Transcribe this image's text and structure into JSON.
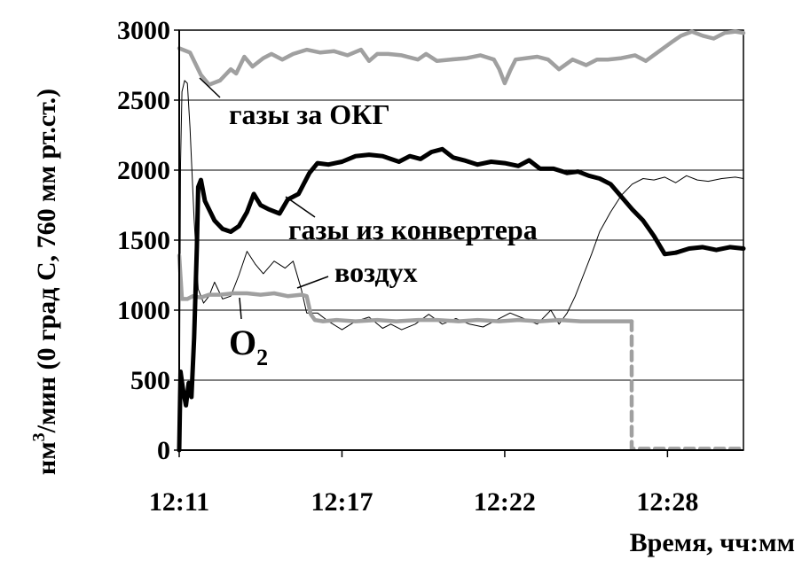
{
  "chart_data": {
    "type": "line",
    "title": "",
    "xlabel": "Время, чч:мм",
    "ylabel": "нм³/мин (0 град С, 760 мм рт.ст.)",
    "ylabel_parts": {
      "a": "нм",
      "sup": "3",
      "b": "/мин (0 град С, 760 мм рт.ст.)"
    },
    "ylim": [
      0,
      3000
    ],
    "xlim_minutes": [
      12.5,
      33.3
    ],
    "y_ticks": [
      "0",
      "500",
      "1000",
      "1500",
      "2000",
      "2500",
      "3000"
    ],
    "x_ticks": [
      {
        "label": "12:11",
        "t": 12.5
      },
      {
        "label": "12:17",
        "t": 18.5
      },
      {
        "label": "12:22",
        "t": 24.5
      },
      {
        "label": "12:28",
        "t": 30.5
      }
    ],
    "grid": "horizontal",
    "legend": "none",
    "annotations": [
      {
        "text": "газы за ОКГ",
        "series": "gases_after"
      },
      {
        "text": "газы из конвертера",
        "series": "gases_converter"
      },
      {
        "text": "воздух",
        "series": "air"
      },
      {
        "text": "O",
        "sub": "2",
        "series": "o2"
      }
    ],
    "series": [
      {
        "key": "gases_after",
        "color": "#a0a0a0",
        "width": 4.5,
        "dash": "",
        "x": [
          12.5,
          12.9,
          13.1,
          13.3,
          13.6,
          14.0,
          14.4,
          14.6,
          14.9,
          15.2,
          15.6,
          15.9,
          16.3,
          16.7,
          17.2,
          17.7,
          18.2,
          18.7,
          19.2,
          19.5,
          19.8,
          20.2,
          20.7,
          21.3,
          21.6,
          22.0,
          22.5,
          23.1,
          23.6,
          24.1,
          24.3,
          24.5,
          24.7,
          24.9,
          25.3,
          25.7,
          26.1,
          26.5,
          27.0,
          27.5,
          27.9,
          28.3,
          28.8,
          29.3,
          29.7,
          30.2,
          30.7,
          31.0,
          31.4,
          31.8,
          32.2,
          32.6,
          33.0,
          33.3
        ],
        "y": [
          2870,
          2840,
          2760,
          2680,
          2610,
          2640,
          2720,
          2690,
          2810,
          2740,
          2800,
          2830,
          2790,
          2830,
          2860,
          2840,
          2850,
          2820,
          2860,
          2780,
          2830,
          2830,
          2820,
          2790,
          2830,
          2780,
          2790,
          2800,
          2820,
          2790,
          2720,
          2620,
          2710,
          2790,
          2800,
          2810,
          2790,
          2720,
          2790,
          2750,
          2790,
          2790,
          2800,
          2820,
          2780,
          2850,
          2920,
          2960,
          2990,
          2960,
          2940,
          2980,
          2990,
          2980
        ]
      },
      {
        "key": "gases_converter",
        "color": "#000000",
        "width": 5,
        "dash": "",
        "x": [
          12.5,
          12.55,
          12.65,
          12.75,
          12.85,
          12.95,
          13.05,
          13.15,
          13.2,
          13.3,
          13.45,
          13.6,
          13.8,
          14.1,
          14.4,
          14.7,
          15.0,
          15.25,
          15.5,
          15.8,
          16.2,
          16.5,
          16.9,
          17.3,
          17.6,
          18.0,
          18.5,
          19.0,
          19.5,
          20.0,
          20.3,
          20.6,
          21.0,
          21.4,
          21.8,
          22.2,
          22.6,
          23.0,
          23.5,
          24.0,
          24.5,
          25.0,
          25.4,
          25.8,
          26.3,
          26.8,
          27.2,
          27.6,
          28.0,
          28.4,
          28.8,
          29.2,
          29.6,
          30.0,
          30.4,
          30.8,
          31.3,
          31.8,
          32.3,
          32.8,
          33.3
        ],
        "y": [
          0,
          560,
          420,
          320,
          480,
          380,
          800,
          1450,
          1880,
          1930,
          1780,
          1720,
          1640,
          1580,
          1560,
          1600,
          1700,
          1830,
          1750,
          1720,
          1690,
          1790,
          1830,
          1980,
          2050,
          2040,
          2060,
          2100,
          2110,
          2100,
          2080,
          2060,
          2100,
          2080,
          2130,
          2150,
          2090,
          2070,
          2040,
          2060,
          2050,
          2030,
          2070,
          2010,
          2010,
          1980,
          1990,
          1960,
          1940,
          1900,
          1810,
          1720,
          1640,
          1530,
          1400,
          1410,
          1440,
          1450,
          1430,
          1450,
          1440
        ]
      },
      {
        "key": "air",
        "color": "#000000",
        "width": 1,
        "dash": "",
        "x": [
          12.5,
          12.55,
          12.6,
          12.7,
          12.8,
          12.9,
          13.05,
          13.2,
          13.4,
          13.6,
          13.8,
          14.1,
          14.4,
          14.7,
          15.0,
          15.3,
          15.6,
          16.0,
          16.4,
          16.7,
          17.0,
          17.2,
          17.6,
          18.0,
          18.5,
          19.0,
          19.5,
          20.0,
          20.3,
          20.7,
          21.2,
          21.7,
          22.2,
          22.7,
          23.2,
          23.7,
          24.2,
          24.7,
          25.2,
          25.7,
          26.2,
          26.5,
          26.8,
          27.1,
          27.4,
          27.7,
          28.0,
          28.4,
          28.8,
          29.2,
          29.6,
          30.0,
          30.4,
          30.8,
          31.2,
          31.6,
          32.0,
          32.5,
          33.0,
          33.3
        ],
        "y": [
          0,
          2050,
          2560,
          2640,
          2620,
          2300,
          1650,
          1150,
          1050,
          1100,
          1200,
          1080,
          1100,
          1250,
          1420,
          1330,
          1260,
          1350,
          1300,
          1350,
          1150,
          980,
          980,
          920,
          860,
          920,
          950,
          870,
          900,
          860,
          900,
          970,
          900,
          940,
          900,
          880,
          930,
          980,
          940,
          900,
          1000,
          900,
          980,
          1100,
          1250,
          1400,
          1560,
          1700,
          1820,
          1900,
          1940,
          1930,
          1950,
          1910,
          1960,
          1930,
          1920,
          1940,
          1950,
          1940
        ]
      },
      {
        "key": "o2",
        "color": "#a0a0a0",
        "width": 4.5,
        "dash": "",
        "x": [
          12.5,
          12.6,
          12.8,
          13.0,
          13.3,
          13.6,
          14.0,
          14.5,
          15.0,
          15.5,
          16.0,
          16.5,
          17.0,
          17.2,
          17.35,
          17.5,
          17.8,
          18.3,
          19.0,
          19.8,
          20.5,
          21.3,
          22.0,
          22.8,
          23.5,
          24.3,
          25.0,
          25.8,
          26.5,
          27.3,
          28.0,
          28.6,
          29.0,
          29.18
        ],
        "y": [
          1390,
          1080,
          1080,
          1100,
          1090,
          1110,
          1110,
          1120,
          1120,
          1110,
          1120,
          1100,
          1110,
          1100,
          970,
          930,
          920,
          930,
          920,
          930,
          920,
          930,
          930,
          920,
          930,
          920,
          930,
          920,
          930,
          920,
          920,
          920,
          920,
          920
        ]
      },
      {
        "key": "o2_drop",
        "color": "#a0a0a0",
        "width": 4.5,
        "dash": "10,7",
        "x": [
          29.18,
          29.18,
          33.3
        ],
        "y": [
          920,
          10,
          10
        ]
      }
    ]
  }
}
